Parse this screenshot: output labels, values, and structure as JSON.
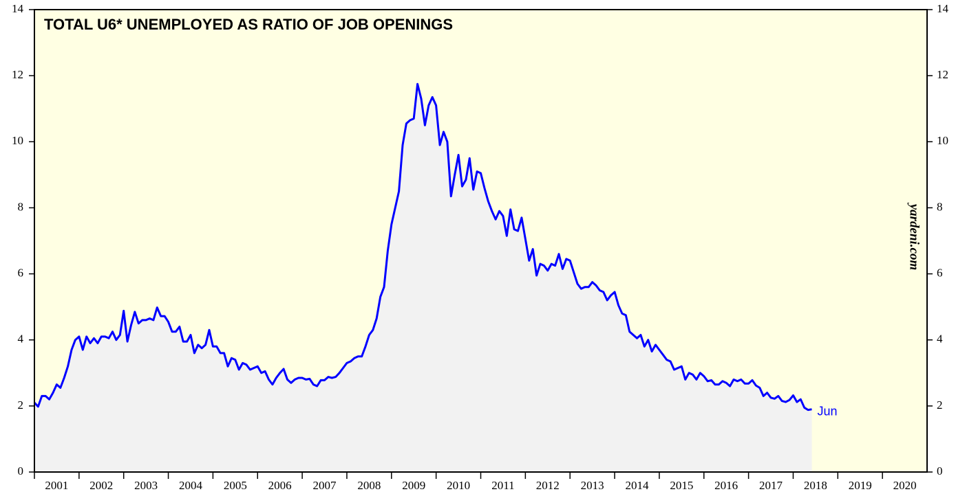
{
  "chart_data": {
    "type": "line",
    "title": "TOTAL U6* UNEMPLOYED AS RATIO OF JOB OPENINGS",
    "watermark": "yardeni.com",
    "annotation": "Jun",
    "x": [
      "2001-01",
      "2001-02",
      "2001-03",
      "2001-04",
      "2001-05",
      "2001-06",
      "2001-07",
      "2001-08",
      "2001-09",
      "2001-10",
      "2001-11",
      "2001-12",
      "2002-01",
      "2002-02",
      "2002-03",
      "2002-04",
      "2002-05",
      "2002-06",
      "2002-07",
      "2002-08",
      "2002-09",
      "2002-10",
      "2002-11",
      "2002-12",
      "2003-01",
      "2003-02",
      "2003-03",
      "2003-04",
      "2003-05",
      "2003-06",
      "2003-07",
      "2003-08",
      "2003-09",
      "2003-10",
      "2003-11",
      "2003-12",
      "2004-01",
      "2004-02",
      "2004-03",
      "2004-04",
      "2004-05",
      "2004-06",
      "2004-07",
      "2004-08",
      "2004-09",
      "2004-10",
      "2004-11",
      "2004-12",
      "2005-01",
      "2005-02",
      "2005-03",
      "2005-04",
      "2005-05",
      "2005-06",
      "2005-07",
      "2005-08",
      "2005-09",
      "2005-10",
      "2005-11",
      "2005-12",
      "2006-01",
      "2006-02",
      "2006-03",
      "2006-04",
      "2006-05",
      "2006-06",
      "2006-07",
      "2006-08",
      "2006-09",
      "2006-10",
      "2006-11",
      "2006-12",
      "2007-01",
      "2007-02",
      "2007-03",
      "2007-04",
      "2007-05",
      "2007-06",
      "2007-07",
      "2007-08",
      "2007-09",
      "2007-10",
      "2007-11",
      "2007-12",
      "2008-01",
      "2008-02",
      "2008-03",
      "2008-04",
      "2008-05",
      "2008-06",
      "2008-07",
      "2008-08",
      "2008-09",
      "2008-10",
      "2008-11",
      "2008-12",
      "2009-01",
      "2009-02",
      "2009-03",
      "2009-04",
      "2009-05",
      "2009-06",
      "2009-07",
      "2009-08",
      "2009-09",
      "2009-10",
      "2009-11",
      "2009-12",
      "2010-01",
      "2010-02",
      "2010-03",
      "2010-04",
      "2010-05",
      "2010-06",
      "2010-07",
      "2010-08",
      "2010-09",
      "2010-10",
      "2010-11",
      "2010-12",
      "2011-01",
      "2011-02",
      "2011-03",
      "2011-04",
      "2011-05",
      "2011-06",
      "2011-07",
      "2011-08",
      "2011-09",
      "2011-10",
      "2011-11",
      "2011-12",
      "2012-01",
      "2012-02",
      "2012-03",
      "2012-04",
      "2012-05",
      "2012-06",
      "2012-07",
      "2012-08",
      "2012-09",
      "2012-10",
      "2012-11",
      "2012-12",
      "2013-01",
      "2013-02",
      "2013-03",
      "2013-04",
      "2013-05",
      "2013-06",
      "2013-07",
      "2013-08",
      "2013-09",
      "2013-10",
      "2013-11",
      "2013-12",
      "2014-01",
      "2014-02",
      "2014-03",
      "2014-04",
      "2014-05",
      "2014-06",
      "2014-07",
      "2014-08",
      "2014-09",
      "2014-10",
      "2014-11",
      "2014-12",
      "2015-01",
      "2015-02",
      "2015-03",
      "2015-04",
      "2015-05",
      "2015-06",
      "2015-07",
      "2015-08",
      "2015-09",
      "2015-10",
      "2015-11",
      "2015-12",
      "2016-01",
      "2016-02",
      "2016-03",
      "2016-04",
      "2016-05",
      "2016-06",
      "2016-07",
      "2016-08",
      "2016-09",
      "2016-10",
      "2016-11",
      "2016-12",
      "2017-01",
      "2017-02",
      "2017-03",
      "2017-04",
      "2017-05",
      "2017-06",
      "2017-07",
      "2017-08",
      "2017-09",
      "2017-10",
      "2017-11",
      "2017-12",
      "2018-01",
      "2018-02",
      "2018-03",
      "2018-04",
      "2018-05",
      "2018-06"
    ],
    "series": [
      {
        "color": "#0000ff",
        "values": [
          2.1,
          1.98,
          2.3,
          2.3,
          2.2,
          2.4,
          2.65,
          2.55,
          2.85,
          3.2,
          3.7,
          4.0,
          4.1,
          3.7,
          4.1,
          3.9,
          4.05,
          3.9,
          4.1,
          4.1,
          4.05,
          4.25,
          4.0,
          4.15,
          4.88,
          3.95,
          4.45,
          4.85,
          4.5,
          4.6,
          4.6,
          4.65,
          4.6,
          4.98,
          4.72,
          4.72,
          4.55,
          4.25,
          4.25,
          4.4,
          3.95,
          3.95,
          4.15,
          3.6,
          3.85,
          3.75,
          3.85,
          4.3,
          3.8,
          3.8,
          3.6,
          3.6,
          3.2,
          3.45,
          3.4,
          3.1,
          3.3,
          3.25,
          3.1,
          3.15,
          3.2,
          3.0,
          3.05,
          2.8,
          2.65,
          2.85,
          3.0,
          3.12,
          2.8,
          2.7,
          2.8,
          2.85,
          2.85,
          2.8,
          2.82,
          2.65,
          2.6,
          2.78,
          2.78,
          2.88,
          2.85,
          2.88,
          3.0,
          3.15,
          3.3,
          3.35,
          3.45,
          3.5,
          3.5,
          3.8,
          4.15,
          4.3,
          4.65,
          5.3,
          5.6,
          6.7,
          7.5,
          8.0,
          8.5,
          9.9,
          10.55,
          10.65,
          10.7,
          11.75,
          11.3,
          10.5,
          11.1,
          11.35,
          11.1,
          9.9,
          10.3,
          10.0,
          8.35,
          9.0,
          9.6,
          8.65,
          8.85,
          9.5,
          8.55,
          9.1,
          9.05,
          8.6,
          8.2,
          7.9,
          7.65,
          7.9,
          7.75,
          7.15,
          7.95,
          7.35,
          7.3,
          7.7,
          7.05,
          6.4,
          6.75,
          5.95,
          6.3,
          6.25,
          6.1,
          6.3,
          6.25,
          6.6,
          6.15,
          6.45,
          6.4,
          6.05,
          5.7,
          5.55,
          5.6,
          5.6,
          5.75,
          5.65,
          5.5,
          5.45,
          5.2,
          5.35,
          5.45,
          5.05,
          4.8,
          4.75,
          4.25,
          4.15,
          4.05,
          4.15,
          3.8,
          4.0,
          3.65,
          3.85,
          3.7,
          3.55,
          3.4,
          3.35,
          3.1,
          3.15,
          3.2,
          2.8,
          3.0,
          2.95,
          2.8,
          3.0,
          2.9,
          2.75,
          2.78,
          2.65,
          2.65,
          2.75,
          2.7,
          2.6,
          2.8,
          2.75,
          2.8,
          2.68,
          2.68,
          2.78,
          2.62,
          2.55,
          2.3,
          2.4,
          2.25,
          2.22,
          2.3,
          2.15,
          2.12,
          2.18,
          2.32,
          2.12,
          2.2,
          1.95,
          1.88,
          1.9
        ]
      }
    ],
    "xlim": [
      2001,
      2021
    ],
    "xticks": [
      2001,
      2002,
      2003,
      2004,
      2005,
      2006,
      2007,
      2008,
      2009,
      2010,
      2011,
      2012,
      2013,
      2014,
      2015,
      2016,
      2017,
      2018,
      2019,
      2020
    ],
    "ylim": [
      0,
      14
    ],
    "yticks": [
      0,
      2,
      4,
      6,
      8,
      10,
      12,
      14
    ],
    "fill": "#f2f2f2",
    "background": "#ffffe3"
  }
}
